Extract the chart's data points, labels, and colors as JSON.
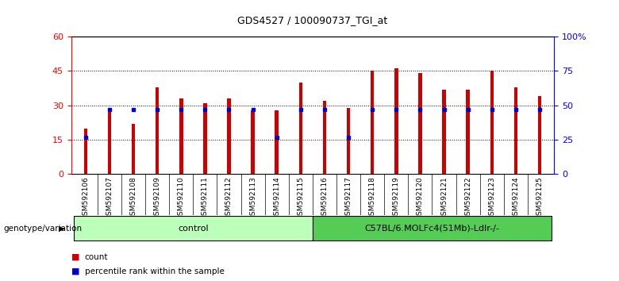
{
  "title": "GDS4527 / 100090737_TGI_at",
  "samples": [
    "GSM592106",
    "GSM592107",
    "GSM592108",
    "GSM592109",
    "GSM592110",
    "GSM592111",
    "GSM592112",
    "GSM592113",
    "GSM592114",
    "GSM592115",
    "GSM592116",
    "GSM592117",
    "GSM592118",
    "GSM592119",
    "GSM592120",
    "GSM592121",
    "GSM592122",
    "GSM592123",
    "GSM592124",
    "GSM592125"
  ],
  "counts": [
    20,
    29,
    22,
    38,
    33,
    31,
    33,
    28,
    28,
    40,
    32,
    29,
    45,
    46,
    44,
    37,
    37,
    45,
    38,
    34
  ],
  "percentile_ranks": [
    27,
    47,
    47,
    47,
    47,
    47,
    47,
    47,
    27,
    47,
    47,
    27,
    47,
    47,
    47,
    47,
    47,
    47,
    47,
    47
  ],
  "bar_color": "#cc0000",
  "pct_color": "#0000cc",
  "ylim_left": [
    0,
    60
  ],
  "ylim_right": [
    0,
    100
  ],
  "yticks_left": [
    0,
    15,
    30,
    45,
    60
  ],
  "yticks_right": [
    0,
    25,
    50,
    75,
    100
  ],
  "yticklabels_right": [
    "0",
    "25",
    "50",
    "75",
    "100%"
  ],
  "group_labels": [
    "control",
    "C57BL/6.MOLFc4(51Mb)-Ldlr-/-"
  ],
  "group_ranges": [
    [
      0,
      9
    ],
    [
      10,
      19
    ]
  ],
  "group_colors": [
    "#bbffbb",
    "#55cc55"
  ],
  "group_label_text": "genotype/variation",
  "legend_count_label": "count",
  "legend_pct_label": "percentile rank within the sample",
  "bar_width": 0.15,
  "bg_color": "#ffffff",
  "plot_bg": "#ffffff",
  "grid_color": "#000000",
  "tick_area_color": "#c8c8c8"
}
